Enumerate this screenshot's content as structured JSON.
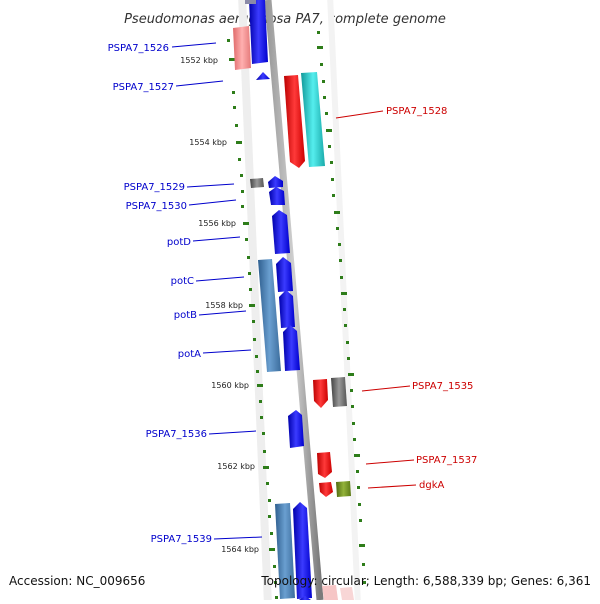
{
  "title": "Pseudomonas aeruginosa PA7, complete genome",
  "footer": {
    "accession": "Accession: NC_009656",
    "topology": "Topology: circular; Length: 6,588,339 bp; Genes: 6,361"
  },
  "colors": {
    "left_label": "#0000cc",
    "right_label": "#cc0000",
    "tick": "#2e7d1a",
    "backbone": "#8c8c8c",
    "blue": "#1212ee",
    "steel": "#4a7fb4",
    "red": "#ee1111",
    "cyan": "#22cccc",
    "grey": "#6e6e6e",
    "olive": "#6f8c1c",
    "pink": "#f08a8a"
  },
  "kbp_labels": [
    "1552 kbp",
    "1554 kbp",
    "1556 kbp",
    "1558 kbp",
    "1560 kbp",
    "1562 kbp",
    "1564 kbp"
  ],
  "genes_left": [
    "PSPA7_1526",
    "PSPA7_1527",
    "PSPA7_1529",
    "PSPA7_1530",
    "potD",
    "potC",
    "potB",
    "potA",
    "PSPA7_1536",
    "PSPA7_1539"
  ],
  "genes_right": [
    "PSPA7_1528",
    "PSPA7_1535",
    "PSPA7_1537",
    "dgkA"
  ]
}
